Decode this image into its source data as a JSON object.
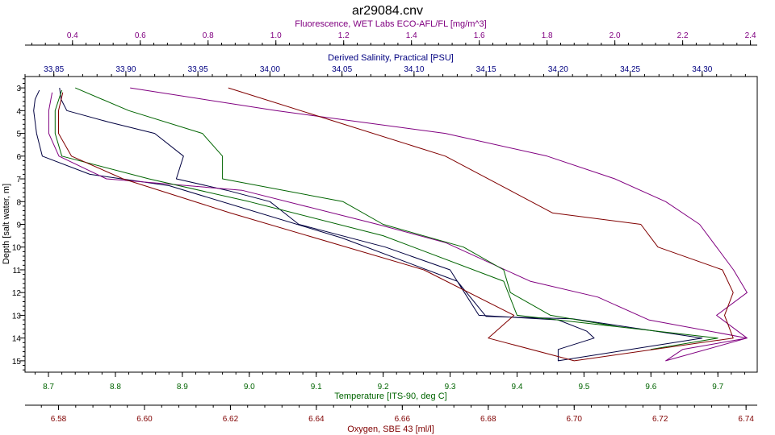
{
  "chart_data": {
    "type": "line",
    "title": "ar29084.cnv",
    "y_axis": {
      "label": "Depth [salt water, m]",
      "range": [
        2.5,
        15.5
      ],
      "inverted": true,
      "ticks": [
        3,
        4,
        5,
        6,
        7,
        8,
        9,
        10,
        11,
        12,
        13,
        14,
        15
      ],
      "tick_labels": [
        "3",
        "4",
        "5",
        "6",
        "7",
        "8",
        "9",
        "10",
        "11",
        "12",
        "13",
        "14",
        "15"
      ]
    },
    "x_axes": [
      {
        "id": "fluor",
        "label": "Fluorescence, WET Labs ECO-AFL/FL [mg/m^3]",
        "position": "top-outer",
        "color": "#800080",
        "range": [
          0.26,
          2.42
        ],
        "ticks": [
          0.4,
          0.6,
          0.8,
          1.0,
          1.2,
          1.4,
          1.6,
          1.8,
          2.0,
          2.2,
          2.4
        ],
        "tick_labels": [
          "0.4",
          "0.6",
          "0.8",
          "1.0",
          "1.2",
          "1.4",
          "1.6",
          "1.8",
          "2.0",
          "2.2",
          "2.4"
        ]
      },
      {
        "id": "sal",
        "label": "Derived Salinity, Practical [PSU]",
        "position": "top-inner",
        "color": "#000080",
        "range": [
          33.83,
          34.3382
        ],
        "ticks": [
          33.85,
          33.9,
          33.95,
          34.0,
          34.05,
          34.1,
          34.15,
          34.2,
          34.25,
          34.3
        ],
        "tick_labels": [
          "33.85",
          "33.90",
          "33.95",
          "34.00",
          "34.05",
          "34.10",
          "34.15",
          "34.20",
          "34.25",
          "34.30"
        ]
      },
      {
        "id": "temp",
        "label": "Temperature [ITS-90, deg C]",
        "position": "bottom-inner",
        "color": "#006400",
        "range": [
          8.665,
          9.7588
        ],
        "ticks": [
          8.7,
          8.8,
          8.9,
          9.0,
          9.1,
          9.2,
          9.3,
          9.4,
          9.5,
          9.6,
          9.7
        ],
        "tick_labels": [
          "8.7",
          "8.8",
          "8.9",
          "9.0",
          "9.1",
          "9.2",
          "9.3",
          "9.4",
          "9.5",
          "9.6",
          "9.7"
        ]
      },
      {
        "id": "oxy",
        "label": "Oxygen, SBE 43 [ml/l]",
        "position": "bottom-outer",
        "color": "#800000",
        "range": [
          6.5722,
          6.7426
        ],
        "ticks": [
          6.58,
          6.6,
          6.62,
          6.64,
          6.66,
          6.68,
          6.7,
          6.72,
          6.74
        ],
        "tick_labels": [
          "6.58",
          "6.60",
          "6.62",
          "6.64",
          "6.66",
          "6.68",
          "6.70",
          "6.72",
          "6.74"
        ]
      }
    ],
    "series": [
      {
        "axis": "sal",
        "color": "#000040",
        "points": [
          [
            33.854,
            3.0
          ],
          [
            33.855,
            3.5
          ],
          [
            33.859,
            4.0
          ],
          [
            33.888,
            4.5
          ],
          [
            33.92,
            5.0
          ],
          [
            33.94,
            6.0
          ],
          [
            33.935,
            7.0
          ],
          [
            33.97,
            7.5
          ],
          [
            34.0,
            8.0
          ],
          [
            34.01,
            8.5
          ],
          [
            34.02,
            9.0
          ],
          [
            34.08,
            10.0
          ],
          [
            34.125,
            11.0
          ],
          [
            34.135,
            12.0
          ],
          [
            34.145,
            13.0
          ],
          [
            34.2,
            13.2
          ],
          [
            34.22,
            13.7
          ],
          [
            34.225,
            14.0
          ],
          [
            34.2,
            14.5
          ],
          [
            34.2,
            15.0
          ],
          [
            34.3,
            14.0
          ],
          [
            34.21,
            13.15
          ],
          [
            34.15,
            13.05
          ],
          [
            34.13,
            11.5
          ],
          [
            34.05,
            9.6
          ],
          [
            33.93,
            7.3
          ],
          [
            33.875,
            6.8
          ],
          [
            33.842,
            6.0
          ],
          [
            33.838,
            5.0
          ],
          [
            33.836,
            4.0
          ],
          [
            33.837,
            3.5
          ],
          [
            33.84,
            3.1
          ]
        ]
      },
      {
        "axis": "fluor",
        "color": "#800080",
        "points": [
          [
            0.57,
            3.0
          ],
          [
            1.0,
            4.0
          ],
          [
            1.5,
            5.0
          ],
          [
            1.8,
            6.0
          ],
          [
            2.0,
            7.0
          ],
          [
            2.15,
            8.0
          ],
          [
            2.25,
            9.0
          ],
          [
            2.3,
            10.0
          ],
          [
            2.35,
            11.0
          ],
          [
            2.39,
            12.0
          ],
          [
            2.3,
            13.0
          ],
          [
            2.39,
            14.0
          ],
          [
            2.2,
            14.5
          ],
          [
            2.15,
            15.0
          ],
          [
            2.39,
            14.0
          ],
          [
            2.1,
            13.2
          ],
          [
            1.95,
            12.2
          ],
          [
            1.75,
            11.5
          ],
          [
            1.5,
            9.8
          ],
          [
            1.3,
            9.0
          ],
          [
            0.9,
            7.5
          ],
          [
            0.5,
            7.0
          ],
          [
            0.36,
            6.0
          ],
          [
            0.33,
            5.0
          ],
          [
            0.33,
            4.0
          ],
          [
            0.34,
            3.2
          ]
        ]
      },
      {
        "axis": "temp",
        "color": "#006400",
        "points": [
          [
            8.74,
            3.0
          ],
          [
            8.82,
            4.0
          ],
          [
            8.93,
            5.0
          ],
          [
            8.96,
            6.0
          ],
          [
            8.96,
            7.0
          ],
          [
            9.14,
            8.0
          ],
          [
            9.2,
            9.0
          ],
          [
            9.32,
            10.0
          ],
          [
            9.38,
            11.0
          ],
          [
            9.39,
            12.0
          ],
          [
            9.45,
            13.0
          ],
          [
            9.55,
            13.5
          ],
          [
            9.7,
            14.0
          ],
          [
            9.6,
            14.5
          ],
          [
            9.7,
            14.0
          ],
          [
            9.4,
            13.0
          ],
          [
            9.38,
            11.5
          ],
          [
            9.2,
            9.5
          ],
          [
            9.0,
            8.0
          ],
          [
            8.85,
            7.0
          ],
          [
            8.72,
            6.0
          ],
          [
            8.71,
            5.0
          ],
          [
            8.71,
            4.0
          ],
          [
            8.72,
            3.1
          ]
        ]
      },
      {
        "axis": "oxy",
        "color": "#800000",
        "points": [
          [
            6.6195,
            3.0
          ],
          [
            6.67,
            6.0
          ],
          [
            6.695,
            8.5
          ],
          [
            6.7155,
            9.0
          ],
          [
            6.7195,
            10.0
          ],
          [
            6.7345,
            11.0
          ],
          [
            6.737,
            12.0
          ],
          [
            6.735,
            13.0
          ],
          [
            6.737,
            14.0
          ],
          [
            6.7,
            15.0
          ],
          [
            6.68,
            14.0
          ],
          [
            6.686,
            13.0
          ],
          [
            6.665,
            11.0
          ],
          [
            6.62,
            8.5
          ],
          [
            6.595,
            7.0
          ],
          [
            6.583,
            6.0
          ],
          [
            6.58,
            5.0
          ],
          [
            6.58,
            4.0
          ],
          [
            6.581,
            3.2
          ]
        ]
      }
    ]
  }
}
